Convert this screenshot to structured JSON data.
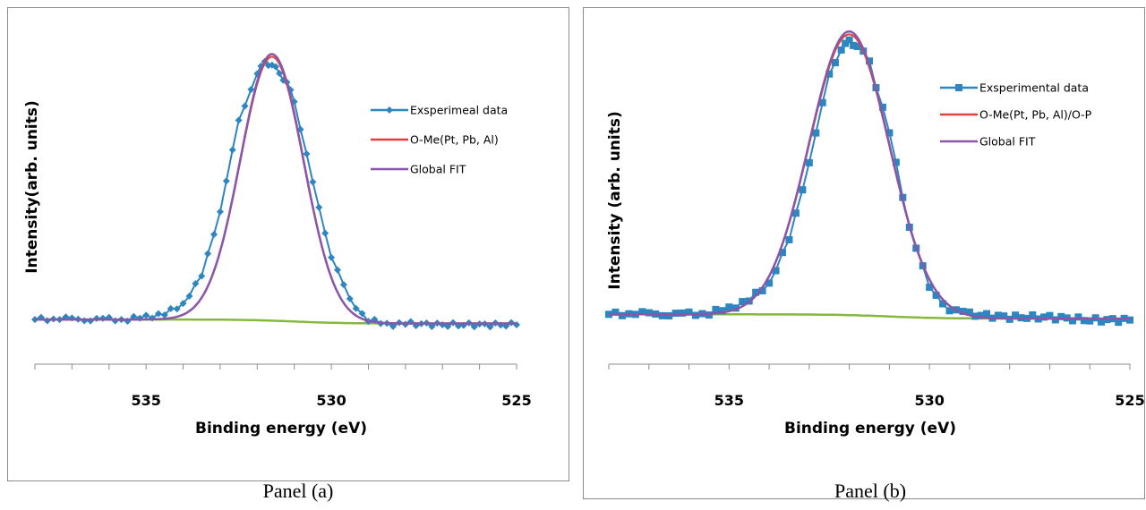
{
  "colors": {
    "experimental": "#2e86c1",
    "component": "#e0413c",
    "global_fit": "#8a57a8",
    "background": "#86b83e"
  },
  "panels": [
    {
      "caption": "Panel (a)",
      "marker": "diamond"
    },
    {
      "caption": "Panel (b)",
      "marker": "square"
    }
  ],
  "chart_data": [
    {
      "type": "line",
      "title": "",
      "xlabel": "Binding energy (eV)",
      "ylabel": "Intensity(arb. units)",
      "xlim": [
        538,
        525
      ],
      "x_reversed": true,
      "xticks": [
        535,
        530,
        525
      ],
      "ylim": [
        0,
        1
      ],
      "grid": false,
      "legend": "right",
      "peak": {
        "center": 531.6,
        "sigma": 0.85,
        "amplitude": 1.0,
        "baseline": 0.04
      },
      "series": [
        {
          "name": "Exsperimeal data",
          "role": "experimental",
          "marker": "diamond",
          "x": [
            538.0,
            537.5,
            537.0,
            536.5,
            536.0,
            535.5,
            535.0,
            534.5,
            534.0,
            533.5,
            533.0,
            532.5,
            532.0,
            531.8,
            531.6,
            531.4,
            531.2,
            531.0,
            530.5,
            530.0,
            529.5,
            529.0,
            528.5,
            528.0,
            527.0,
            526.0,
            525.0
          ],
          "y": [
            0.04,
            0.045,
            0.04,
            0.042,
            0.04,
            0.041,
            0.05,
            0.06,
            0.1,
            0.2,
            0.45,
            0.78,
            0.97,
            1.0,
            1.0,
            0.96,
            0.93,
            0.86,
            0.55,
            0.28,
            0.11,
            0.04,
            0.02,
            0.025,
            0.02,
            0.02,
            0.02
          ]
        },
        {
          "name": "O-Me(Pt, Pb, Al)",
          "role": "component",
          "marker": "none"
        },
        {
          "name": "Global FIT",
          "role": "global_fit",
          "marker": "none"
        }
      ]
    },
    {
      "type": "line",
      "title": "",
      "xlabel": "Binding energy (eV)",
      "ylabel": "Intensity (arb. units)",
      "xlim": [
        538,
        525
      ],
      "x_reversed": true,
      "xticks": [
        535,
        530,
        525
      ],
      "ylim": [
        0,
        1
      ],
      "grid": false,
      "legend": "right",
      "peak": {
        "center": 532.0,
        "sigma": 1.0,
        "amplitude": 1.0,
        "baseline": 0.04
      },
      "series": [
        {
          "name": "Exsperimental data",
          "role": "experimental",
          "marker": "square",
          "x": [
            538.0,
            537.5,
            537.0,
            536.5,
            536.0,
            535.5,
            535.0,
            534.5,
            534.0,
            533.5,
            533.0,
            532.5,
            532.2,
            532.0,
            531.8,
            531.5,
            531.0,
            530.5,
            530.0,
            529.5,
            529.0,
            528.0,
            527.0,
            526.0,
            525.0
          ],
          "y": [
            0.04,
            0.045,
            0.04,
            0.042,
            0.04,
            0.045,
            0.06,
            0.09,
            0.15,
            0.3,
            0.58,
            0.88,
            0.98,
            1.0,
            0.99,
            0.93,
            0.68,
            0.35,
            0.13,
            0.06,
            0.04,
            0.03,
            0.03,
            0.02,
            0.02
          ]
        },
        {
          "name": "O-Me(Pt, Pb, Al)/O-P",
          "role": "component",
          "marker": "none"
        },
        {
          "name": "Global FIT",
          "role": "global_fit",
          "marker": "none"
        }
      ]
    }
  ]
}
